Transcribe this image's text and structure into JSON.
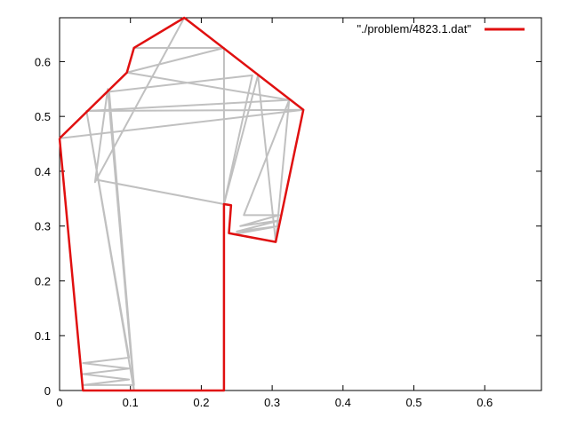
{
  "chart_data": {
    "type": "line",
    "title": "",
    "xlabel": "",
    "ylabel": "",
    "xlim": [
      0,
      0.68
    ],
    "ylim": [
      0,
      0.68
    ],
    "x_ticks": [
      0,
      0.1,
      0.2,
      0.3,
      0.4,
      0.5,
      0.6
    ],
    "y_ticks": [
      0,
      0.1,
      0.2,
      0.3,
      0.4,
      0.5,
      0.6
    ],
    "x_tick_labels": [
      "0",
      "0.1",
      "0.2",
      "0.3",
      "0.4",
      "0.5",
      "0.6"
    ],
    "y_tick_labels": [
      "0",
      "0.1",
      "0.2",
      "0.3",
      "0.4",
      "0.5",
      "0.6"
    ],
    "grid": false,
    "legend_position": "top-right",
    "series": [
      {
        "name": "\"./problem/4823.1.dat\"",
        "color": "#e01010",
        "points": [
          [
            0.0,
            0.46
          ],
          [
            0.033,
            0.0
          ],
          [
            0.232,
            0.0
          ],
          [
            0.232,
            0.34
          ],
          [
            0.242,
            0.338
          ],
          [
            0.239,
            0.287
          ],
          [
            0.305,
            0.271
          ],
          [
            0.344,
            0.512
          ],
          [
            0.176,
            0.68
          ],
          [
            0.105,
            0.625
          ],
          [
            0.095,
            0.58
          ],
          [
            0.0,
            0.46
          ]
        ]
      },
      {
        "name": "",
        "color": "#c0c0c0",
        "points": [
          [
            0.0,
            0.46
          ],
          [
            0.344,
            0.512
          ],
          [
            0.038,
            0.51
          ],
          [
            0.324,
            0.53
          ],
          [
            0.095,
            0.58
          ],
          [
            0.232,
            0.625
          ],
          [
            0.105,
            0.625
          ],
          [
            0.176,
            0.68
          ],
          [
            0.05,
            0.38
          ],
          [
            0.068,
            0.55
          ],
          [
            0.105,
            0.0
          ],
          [
            0.038,
            0.51
          ],
          [
            0.098,
            0.06
          ],
          [
            0.033,
            0.05
          ],
          [
            0.098,
            0.04
          ],
          [
            0.033,
            0.03
          ],
          [
            0.098,
            0.02
          ],
          [
            0.033,
            0.01
          ],
          [
            0.105,
            0.01
          ],
          [
            0.07,
            0.545
          ],
          [
            0.272,
            0.575
          ],
          [
            0.232,
            0.34
          ],
          [
            0.05,
            0.385
          ]
        ]
      },
      {
        "name": "",
        "color": "#c0c0c0",
        "points": [
          [
            0.232,
            0.625
          ],
          [
            0.232,
            0.34
          ],
          [
            0.28,
            0.575
          ],
          [
            0.305,
            0.271
          ],
          [
            0.245,
            0.285
          ],
          [
            0.31,
            0.3
          ],
          [
            0.25,
            0.29
          ],
          [
            0.31,
            0.31
          ],
          [
            0.255,
            0.3
          ],
          [
            0.31,
            0.32
          ],
          [
            0.26,
            0.32
          ],
          [
            0.324,
            0.53
          ],
          [
            0.305,
            0.271
          ]
        ]
      }
    ]
  }
}
